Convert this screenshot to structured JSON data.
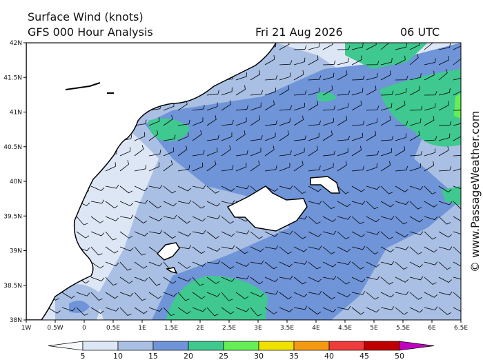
{
  "header": {
    "title": "Surface Wind (knots)",
    "model": "GFS 000 Hour Analysis",
    "date": "Fri 21 Aug 2026",
    "time": "06 UTC"
  },
  "credit": "© www.PassageWeather.com",
  "axes": {
    "y_labels": [
      "42N",
      "41.5N",
      "41N",
      "40.5N",
      "40N",
      "39.5N",
      "39N",
      "38.5N",
      "38N"
    ],
    "x_labels": [
      "1W",
      "0.5W",
      "0",
      "0.5E",
      "1E",
      "1.5E",
      "2E",
      "2.5E",
      "3E",
      "3.5E",
      "4E",
      "4.5E",
      "5E",
      "5.5E",
      "6E",
      "6.5E"
    ]
  },
  "colorbar": {
    "labels": [
      "5",
      "10",
      "15",
      "20",
      "25",
      "30",
      "35",
      "40",
      "45",
      "50"
    ],
    "colors": [
      "#f6f8fd",
      "#dde6f5",
      "#a9bfe3",
      "#6f94d8",
      "#3fc88f",
      "#66ee55",
      "#f0e000",
      "#f59a10",
      "#ee3b3b",
      "#c00000",
      "#c000c0"
    ]
  }
}
